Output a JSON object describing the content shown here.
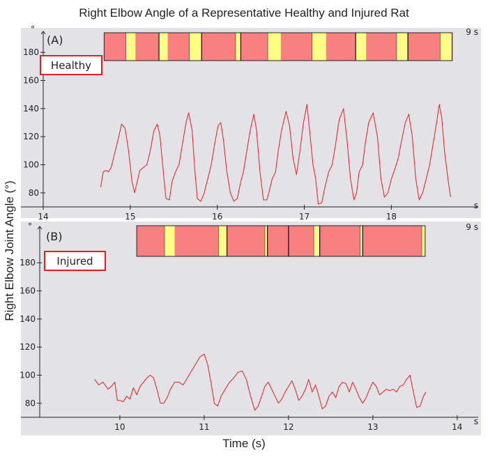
{
  "figure": {
    "title": "Right Elbow Angle of a Representative Healthy and Injured Rat",
    "ylabel": "Right Elbow Joint Angle (°)",
    "xlabel": "Time (s)"
  },
  "colors": {
    "background": "#e3e2e6",
    "trace": "#e03030",
    "stance": "#f98080",
    "swing": "#ffff88",
    "label_border": "#e02020"
  },
  "chart_data": [
    {
      "type": "line",
      "panel": "(A)",
      "label": "Healthy",
      "xlim": [
        14,
        18.95
      ],
      "ylim": [
        70,
        195
      ],
      "x_ticks": [
        14,
        15,
        16,
        17,
        18
      ],
      "y_ticks": [
        80,
        100,
        120,
        140,
        160,
        180
      ],
      "x_unit": "s",
      "y_unit": "°",
      "duration_label": "9 s",
      "gait_bar": {
        "t_start": 14.7,
        "t_end": 18.7,
        "swing": [
          [
            14.95,
            15.06
          ],
          [
            15.33,
            15.43
          ],
          [
            15.68,
            15.82
          ],
          [
            16.21,
            16.27
          ],
          [
            16.58,
            16.73
          ],
          [
            17.09,
            17.25
          ],
          [
            17.59,
            17.71
          ],
          [
            18.06,
            18.19
          ],
          [
            18.56,
            18.69
          ]
        ],
        "dividers": [
          15.33,
          15.82,
          16.27,
          17.59,
          18.19
        ]
      },
      "series": [
        {
          "name": "Right elbow angle (healthy)",
          "x": [
            14.66,
            14.69,
            14.72,
            14.75,
            14.78,
            14.82,
            14.86,
            14.9,
            14.94,
            14.98,
            15.02,
            15.05,
            15.08,
            15.11,
            15.15,
            15.19,
            15.23,
            15.27,
            15.31,
            15.34,
            15.38,
            15.41,
            15.45,
            15.48,
            15.52,
            15.56,
            15.6,
            15.64,
            15.67,
            15.71,
            15.74,
            15.77,
            15.81,
            15.85,
            15.89,
            15.93,
            15.97,
            16.01,
            16.04,
            16.07,
            16.11,
            16.15,
            16.19,
            16.23,
            16.27,
            16.3,
            16.34,
            16.38,
            16.42,
            16.45,
            16.49,
            16.53,
            16.57,
            16.6,
            16.63,
            16.67,
            16.7,
            16.74,
            16.79,
            16.83,
            16.87,
            16.91,
            16.95,
            16.99,
            17.03,
            17.06,
            17.1,
            17.13,
            17.16,
            17.2,
            17.24,
            17.28,
            17.32,
            17.36,
            17.4,
            17.45,
            17.49,
            17.53,
            17.57,
            17.6,
            17.63,
            17.67,
            17.7,
            17.74,
            17.79,
            17.84,
            17.88,
            17.92,
            17.96,
            18,
            18.04,
            18.08,
            18.12,
            18.16,
            18.2,
            18.24,
            18.28,
            18.32,
            18.36,
            18.4,
            18.44,
            18.48,
            18.52,
            18.55,
            18.58,
            18.61,
            18.65,
            18.68
          ],
          "values": [
            84,
            95,
            96,
            95,
            98,
            108,
            118,
            129,
            126,
            110,
            88,
            80,
            88,
            96,
            98,
            100,
            110,
            124,
            129,
            121,
            95,
            76,
            75,
            88,
            95,
            100,
            115,
            130,
            137,
            125,
            98,
            76,
            74,
            80,
            90,
            100,
            115,
            128,
            130,
            118,
            95,
            80,
            74,
            76,
            88,
            95,
            110,
            125,
            136,
            125,
            95,
            75,
            75,
            82,
            90,
            95,
            110,
            125,
            138,
            128,
            105,
            93,
            110,
            130,
            143,
            125,
            100,
            90,
            72,
            73,
            85,
            95,
            100,
            115,
            132,
            140,
            118,
            90,
            75,
            80,
            95,
            100,
            115,
            130,
            137,
            120,
            90,
            77,
            80,
            90,
            97,
            105,
            118,
            130,
            136,
            120,
            90,
            75,
            80,
            90,
            100,
            115,
            130,
            143,
            133,
            110,
            90,
            77
          ]
        }
      ]
    },
    {
      "type": "line",
      "panel": "(B)",
      "label": "Injured",
      "xlim": [
        9.05,
        14.2
      ],
      "ylim": [
        70,
        195
      ],
      "x_ticks": [
        10,
        11,
        12,
        13,
        14
      ],
      "y_ticks": [
        80,
        100,
        120,
        140,
        160,
        180
      ],
      "x_unit": "s",
      "y_unit": "°",
      "duration_label": "9 s",
      "gait_bar": {
        "t_start": 10.2,
        "t_end": 13.62,
        "swing": [
          [
            10.53,
            10.65
          ],
          [
            11.17,
            11.27
          ],
          [
            11.72,
            11.75
          ],
          [
            12.3,
            12.37
          ],
          [
            12.85,
            12.88
          ],
          [
            13.58,
            13.62
          ]
        ],
        "dividers": [
          11.27,
          11.75,
          12.0,
          12.37,
          12.88
        ]
      },
      "series": [
        {
          "name": "Right elbow angle (injured)",
          "x": [
            9.7,
            9.75,
            9.8,
            9.86,
            9.9,
            9.94,
            9.97,
            10,
            10.04,
            10.08,
            10.12,
            10.16,
            10.2,
            10.24,
            10.28,
            10.32,
            10.36,
            10.4,
            10.44,
            10.48,
            10.52,
            10.56,
            10.6,
            10.65,
            10.7,
            10.75,
            10.8,
            10.85,
            10.9,
            10.95,
            11,
            11.04,
            11.08,
            11.12,
            11.16,
            11.2,
            11.25,
            11.3,
            11.35,
            11.4,
            11.45,
            11.5,
            11.55,
            11.6,
            11.64,
            11.68,
            11.72,
            11.76,
            11.8,
            11.84,
            11.88,
            11.92,
            11.96,
            12,
            12.04,
            12.08,
            12.12,
            12.16,
            12.2,
            12.24,
            12.28,
            12.32,
            12.36,
            12.4,
            12.44,
            12.48,
            12.52,
            12.56,
            12.6,
            12.64,
            12.68,
            12.72,
            12.76,
            12.8,
            12.84,
            12.88,
            12.92,
            12.96,
            13,
            13.04,
            13.08,
            13.12,
            13.16,
            13.2,
            13.24,
            13.28,
            13.32,
            13.36,
            13.4,
            13.44,
            13.48,
            13.52,
            13.56,
            13.6,
            13.63
          ],
          "values": [
            97,
            93,
            95,
            90,
            92,
            95,
            82,
            82,
            81,
            85,
            83,
            91,
            86,
            92,
            95,
            98,
            100,
            98,
            90,
            80,
            80,
            84,
            90,
            95,
            95,
            93,
            98,
            103,
            108,
            113,
            115,
            108,
            95,
            80,
            78,
            85,
            90,
            95,
            98,
            102,
            103,
            97,
            85,
            75,
            78,
            85,
            92,
            95,
            90,
            85,
            80,
            83,
            88,
            92,
            96,
            90,
            82,
            85,
            90,
            97,
            88,
            93,
            85,
            76,
            78,
            85,
            88,
            84,
            92,
            95,
            94,
            88,
            95,
            90,
            84,
            80,
            84,
            90,
            95,
            92,
            86,
            88,
            90,
            89,
            90,
            88,
            92,
            93,
            97,
            100,
            88,
            77,
            78,
            85,
            88
          ]
        }
      ]
    }
  ]
}
